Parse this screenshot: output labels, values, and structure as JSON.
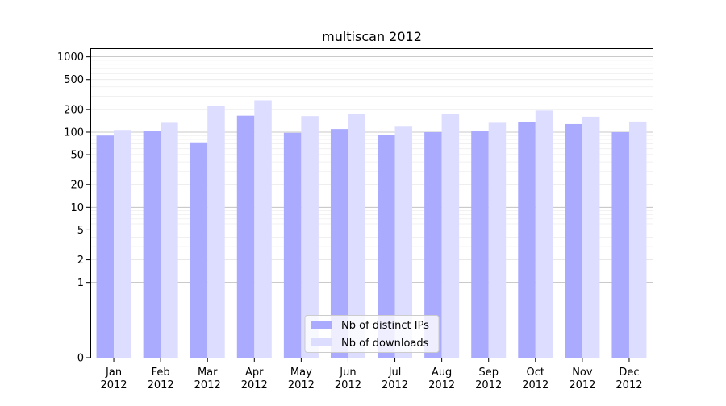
{
  "chart_data": {
    "type": "bar",
    "title": "multiscan 2012",
    "xlabel": "",
    "ylabel": "",
    "yscale": "symlog",
    "ylim": [
      0,
      1300
    ],
    "yticks": [
      0,
      1,
      2,
      5,
      10,
      20,
      50,
      100,
      200,
      500,
      1000
    ],
    "grid": "horizontal",
    "categories": [
      [
        "Jan",
        "2012"
      ],
      [
        "Feb",
        "2012"
      ],
      [
        "Mar",
        "2012"
      ],
      [
        "Apr",
        "2012"
      ],
      [
        "May",
        "2012"
      ],
      [
        "Jun",
        "2012"
      ],
      [
        "Jul",
        "2012"
      ],
      [
        "Aug",
        "2012"
      ],
      [
        "Sep",
        "2012"
      ],
      [
        "Oct",
        "2012"
      ],
      [
        "Nov",
        "2012"
      ],
      [
        "Dec",
        "2012"
      ]
    ],
    "series": [
      {
        "name": "Nb of distinct IPs",
        "color": "#aaaaff",
        "values": [
          90,
          103,
          73,
          165,
          98,
          110,
          92,
          100,
          103,
          135,
          128,
          100
        ]
      },
      {
        "name": "Nb of downloads",
        "color": "#ddddff",
        "values": [
          107,
          133,
          220,
          265,
          163,
          175,
          118,
          172,
          133,
          193,
          160,
          138
        ]
      }
    ],
    "legend": "lower-center"
  }
}
